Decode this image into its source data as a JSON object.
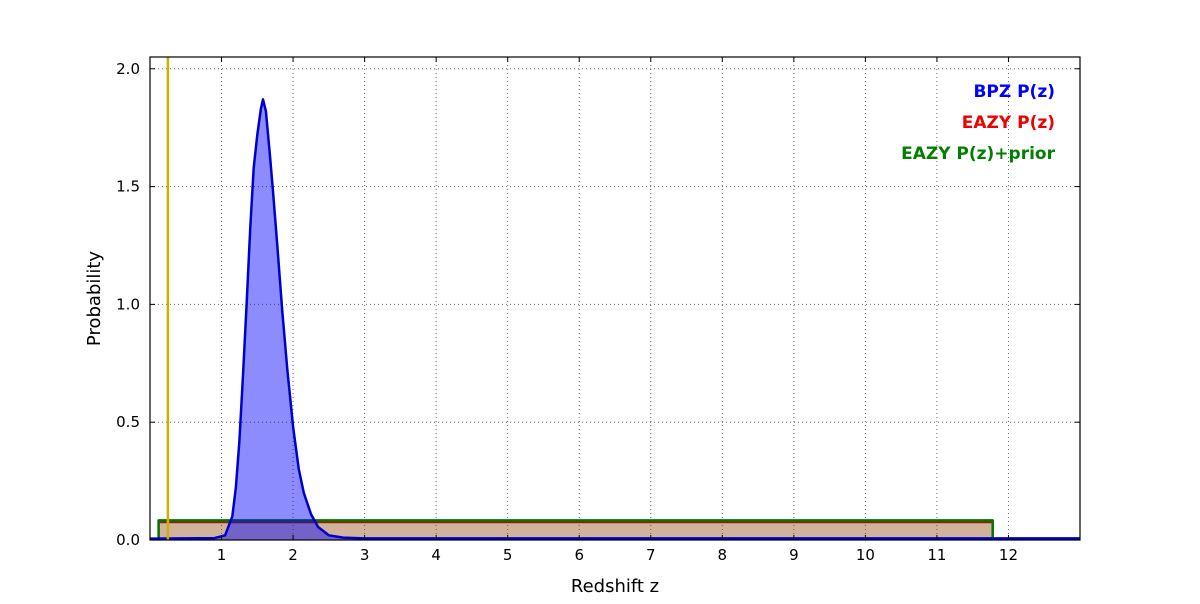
{
  "chart_data": {
    "type": "line",
    "title": "",
    "xlabel": "Redshift z",
    "ylabel": "Probability",
    "xlim": [
      0,
      13
    ],
    "ylim": [
      0,
      2.05
    ],
    "xticks": [
      1,
      2,
      3,
      4,
      5,
      6,
      7,
      8,
      9,
      10,
      11,
      12
    ],
    "xtick_labels": [
      "1",
      "2",
      "3",
      "4",
      "5",
      "6",
      "7",
      "8",
      "9",
      "10",
      "11",
      "12"
    ],
    "yticks": [
      0.0,
      0.5,
      1.0,
      1.5,
      2.0
    ],
    "ytick_labels": [
      "0.0",
      "0.5",
      "1.0",
      "1.5",
      "2.0"
    ],
    "grid": "dotted",
    "grid_color": "#666666",
    "frame_color": "#000000",
    "legend": {
      "position": "top-right",
      "entries": [
        {
          "label": "BPZ P(z)",
          "color": "#0000ff"
        },
        {
          "label": "EAZY P(z)",
          "color": "#ee0000"
        },
        {
          "label": "EAZY P(z)+prior",
          "color": "#007f00"
        }
      ]
    },
    "series": [
      {
        "name": "EAZY P(z)",
        "kind": "area",
        "color": "#cc0000",
        "fill": "rgba(255,0,0,0.25)",
        "line_width": 2,
        "points": [
          [
            0.12,
            0.0
          ],
          [
            0.12,
            0.075
          ],
          [
            11.78,
            0.075
          ],
          [
            11.78,
            0.0
          ]
        ]
      },
      {
        "name": "EAZY P(z)+prior",
        "kind": "area",
        "color": "#007700",
        "fill": "rgba(0,128,0,0.18)",
        "line_width": 2.5,
        "points": [
          [
            0.12,
            0.0
          ],
          [
            0.12,
            0.083
          ],
          [
            11.78,
            0.083
          ],
          [
            11.78,
            0.0
          ]
        ]
      },
      {
        "name": "BPZ P(z)",
        "kind": "area",
        "color": "#0000cc",
        "fill": "rgba(0,0,255,0.45)",
        "line_width": 2.5,
        "points": [
          [
            0.0,
            0.006
          ],
          [
            0.9,
            0.008
          ],
          [
            1.05,
            0.02
          ],
          [
            1.15,
            0.1
          ],
          [
            1.2,
            0.22
          ],
          [
            1.25,
            0.42
          ],
          [
            1.3,
            0.7
          ],
          [
            1.35,
            1.0
          ],
          [
            1.4,
            1.32
          ],
          [
            1.45,
            1.58
          ],
          [
            1.5,
            1.72
          ],
          [
            1.55,
            1.83
          ],
          [
            1.58,
            1.87
          ],
          [
            1.62,
            1.82
          ],
          [
            1.68,
            1.62
          ],
          [
            1.72,
            1.48
          ],
          [
            1.78,
            1.25
          ],
          [
            1.85,
            0.97
          ],
          [
            1.92,
            0.72
          ],
          [
            2.0,
            0.48
          ],
          [
            2.08,
            0.3
          ],
          [
            2.15,
            0.2
          ],
          [
            2.25,
            0.11
          ],
          [
            2.35,
            0.055
          ],
          [
            2.5,
            0.02
          ],
          [
            2.7,
            0.01
          ],
          [
            3.0,
            0.007
          ],
          [
            13.0,
            0.007
          ]
        ]
      },
      {
        "name": "spec-z marker",
        "kind": "vline",
        "color": "#c9b300",
        "line_width": 2.5,
        "x": 0.25
      }
    ]
  }
}
